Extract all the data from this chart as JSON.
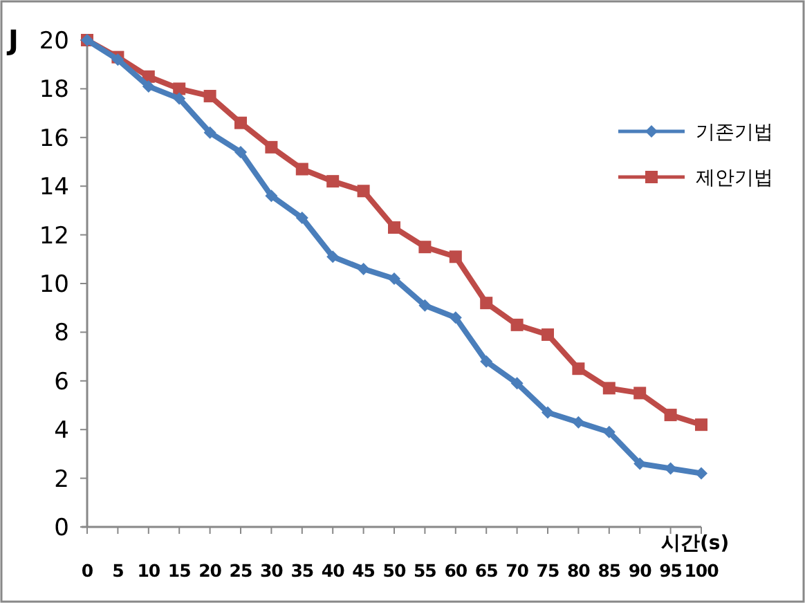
{
  "chart_data": {
    "type": "line",
    "xlabel": "시간(s)",
    "ylabel": "J",
    "categories": [
      "0",
      "5",
      "10",
      "15",
      "20",
      "25",
      "30",
      "35",
      "40",
      "45",
      "50",
      "55",
      "60",
      "65",
      "70",
      "75",
      "80",
      "85",
      "90",
      "95",
      "100"
    ],
    "series": [
      {
        "name": "기존기법",
        "color": "#4a7ebb",
        "marker": "diamond",
        "values": [
          20,
          19.2,
          18.1,
          17.6,
          16.2,
          15.4,
          13.6,
          12.7,
          11.1,
          10.6,
          10.2,
          9.1,
          8.6,
          6.8,
          5.9,
          4.7,
          4.3,
          3.9,
          2.6,
          2.4,
          2.2
        ]
      },
      {
        "name": "제안기법",
        "color": "#be4b48",
        "marker": "square",
        "values": [
          20,
          19.3,
          18.5,
          18.0,
          17.7,
          16.6,
          15.6,
          14.7,
          14.2,
          13.8,
          12.3,
          11.5,
          11.1,
          9.2,
          8.3,
          7.9,
          6.5,
          5.7,
          5.5,
          4.6,
          4.2
        ]
      }
    ],
    "ylim": [
      0,
      20
    ],
    "yticks": [
      0,
      2,
      4,
      6,
      8,
      10,
      12,
      14,
      16,
      18,
      20
    ],
    "grid": false,
    "legend": "right",
    "line_style": "solid"
  }
}
